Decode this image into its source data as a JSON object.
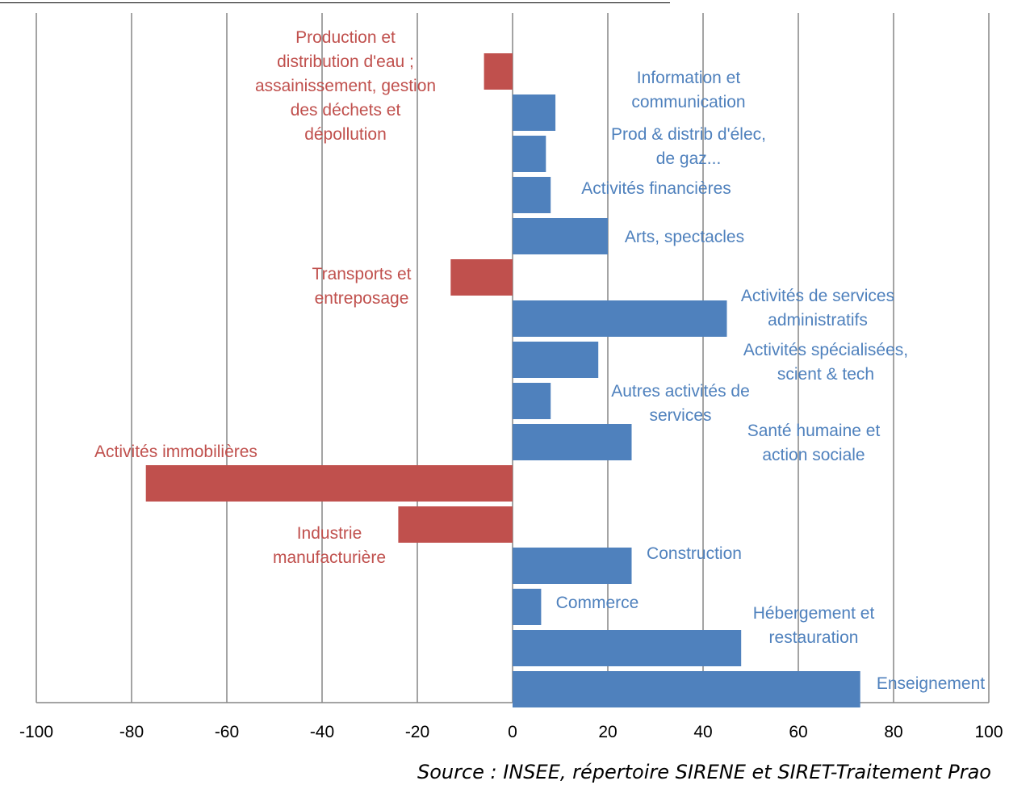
{
  "chart_data": {
    "type": "bar",
    "orientation": "horizontal",
    "xlim": [
      -100,
      100
    ],
    "x_ticks": [
      -100,
      -80,
      -60,
      -40,
      -20,
      0,
      20,
      40,
      60,
      80,
      100
    ],
    "grid": "vertical",
    "colors": {
      "positive": "#4F81BD",
      "negative": "#C0504D",
      "grid": "#868686"
    },
    "categories": [
      "Production et distribution d'eau ; assainissement, gestion des déchets et dépollution",
      "Information et communication",
      "Prod & distrib d'élec, de gaz...",
      "Activités financières",
      "Arts, spectacles",
      "Transports et entreposage",
      "Activités de services administratifs",
      "Activités spécialisées, scient & tech",
      "Autres activités de services",
      "Santé humaine et action sociale",
      "Activités immobilières",
      "Industrie manufacturière",
      "Construction",
      "Commerce",
      "Hébergement et restauration",
      "Enseignement"
    ],
    "values": [
      -6,
      9,
      7,
      8,
      20,
      -13,
      45,
      18,
      8,
      25,
      -77,
      -24,
      25,
      6,
      48,
      73
    ],
    "labels": [
      [
        "Production et",
        "distribution d'eau ;",
        "assainissement, gestion",
        "des déchets et",
        "dépollution"
      ],
      [
        "Information et",
        "communication"
      ],
      [
        "Prod & distrib d'élec,",
        "de gaz..."
      ],
      [
        "Activités financières"
      ],
      [
        "Arts, spectacles"
      ],
      [
        "Transports et",
        "entreposage"
      ],
      [
        "Activités de services",
        "administratifs"
      ],
      [
        "Activités spécialisées,",
        "scient &  tech"
      ],
      [
        "Autres activités de",
        "services"
      ],
      [
        "Santé humaine et",
        "action sociale"
      ],
      [
        "Activités immobilières"
      ],
      [
        "Industrie",
        "manufacturière"
      ],
      [
        "Construction"
      ],
      [
        "Commerce"
      ],
      [
        "Hébergement et",
        "restauration"
      ],
      [
        "Enseignement"
      ]
    ]
  },
  "source": "Source : INSEE, répertoire SIRENE et SIRET-Traitement Prao"
}
